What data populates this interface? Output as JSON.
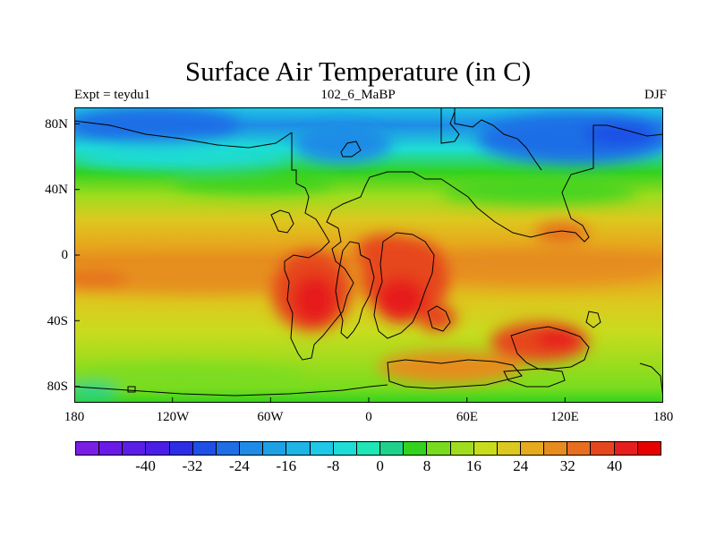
{
  "title": "Surface Air Temperature (in C)",
  "subtitle_left": "Expt = teydu1",
  "subtitle_center": "102_6_MaBP",
  "subtitle_right": "DJF",
  "chart_data": {
    "type": "heatmap",
    "variable": "Surface Air Temperature",
    "units": "C",
    "experiment": "teydu1",
    "period": "102_6_MaBP",
    "season": "DJF",
    "xlim": [
      -180,
      180
    ],
    "ylim": [
      -90,
      90
    ],
    "x_ticks": [
      -180,
      -120,
      -60,
      0,
      60,
      120,
      180
    ],
    "x_tick_labels": [
      "180",
      "120W",
      "60W",
      "0",
      "60E",
      "120E",
      "180"
    ],
    "y_ticks": [
      80,
      40,
      0,
      -40,
      -80
    ],
    "y_tick_labels": [
      "80N",
      "40N",
      "0",
      "40S",
      "80S"
    ],
    "colorbar": {
      "levels": [
        -48,
        -44,
        -40,
        -36,
        -32,
        -28,
        -24,
        -20,
        -16,
        -12,
        -8,
        -4,
        0,
        4,
        8,
        12,
        16,
        20,
        24,
        28,
        32,
        36,
        40,
        44
      ],
      "label_values": [
        -40,
        -32,
        -24,
        -16,
        -8,
        0,
        8,
        16,
        24,
        32,
        40
      ],
      "labels": [
        "-40",
        "-32",
        "-24",
        "-16",
        "-8",
        "0",
        "8",
        "16",
        "24",
        "32",
        "40"
      ],
      "colors": [
        "#7a1ee6",
        "#6a1ae6",
        "#5a1fe6",
        "#4a1ee6",
        "#2d2de6",
        "#1e50e6",
        "#1e6ee6",
        "#1e8ce6",
        "#1ea0e6",
        "#1eb4e6",
        "#1ec8e6",
        "#1edcd6",
        "#1ee6b4",
        "#1ed28c",
        "#32d21e",
        "#78dc1e",
        "#a0dc1e",
        "#c8dc1e",
        "#dcc81e",
        "#e6aa1e",
        "#e68c1e",
        "#e66e1e",
        "#e6461e",
        "#e61e1e",
        "#e60000"
      ]
    },
    "temperature_profile_lat": [
      90,
      80,
      60,
      40,
      20,
      0,
      -20,
      -40,
      -60,
      -80,
      -90
    ],
    "temperature_profile_C": [
      -8,
      -10,
      2,
      14,
      24,
      28,
      30,
      24,
      20,
      14,
      12
    ],
    "warm_spots": [
      {
        "lon": -35,
        "lat": -25,
        "value": 42
      },
      {
        "lon": 15,
        "lat": -25,
        "value": 42
      },
      {
        "lon": 10,
        "lat": 5,
        "value": 36
      },
      {
        "lon": 50,
        "lat": -40,
        "value": 36
      },
      {
        "lon": 115,
        "lat": -55,
        "value": 38
      },
      {
        "lon": 125,
        "lat": 15,
        "value": 34
      }
    ],
    "cold_spots": [
      {
        "lon": 105,
        "lat": 75,
        "value": -20
      },
      {
        "lon": -140,
        "lat": 80,
        "value": -16
      },
      {
        "lon": -40,
        "lat": 70,
        "value": -12
      }
    ]
  }
}
